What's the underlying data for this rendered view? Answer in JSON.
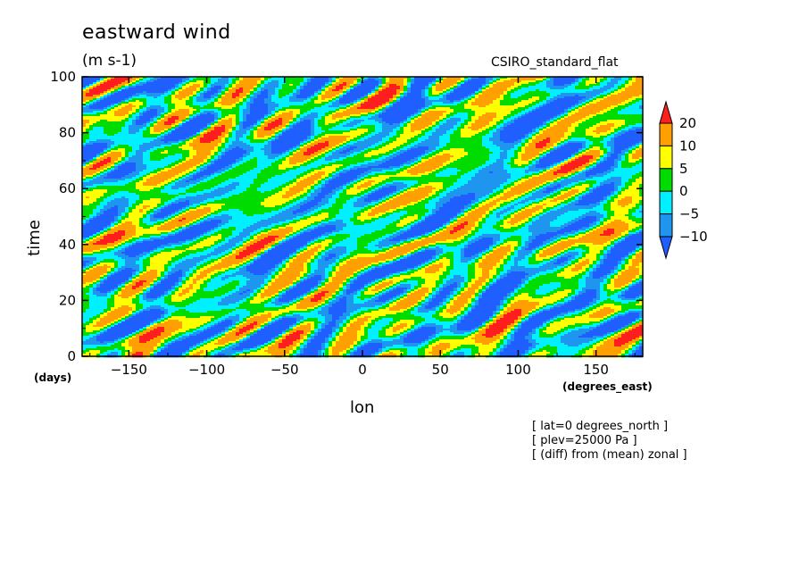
{
  "chart_data": {
    "type": "heatmap",
    "title": "eastward wind",
    "units": "(m s-1)",
    "dataset": "CSIRO_standard_flat",
    "xlabel": "lon",
    "ylabel": "time",
    "x_units": "(degrees_east)",
    "y_units": "(days)",
    "xlim": [
      -180,
      180
    ],
    "ylim": [
      0,
      100
    ],
    "x_ticks": [
      -150,
      -100,
      -50,
      0,
      50,
      100,
      150
    ],
    "x_tick_labels": [
      "−150",
      "−100",
      "−50",
      "0",
      "50",
      "100",
      "150"
    ],
    "y_ticks": [
      0,
      20,
      40,
      60,
      80,
      100
    ],
    "y_tick_labels": [
      "0",
      "20",
      "40",
      "60",
      "80",
      "100"
    ],
    "colorbar": {
      "levels": [
        -10,
        -5,
        0,
        5,
        10,
        20
      ],
      "level_labels": [
        "−10",
        "−5",
        "0",
        "5",
        "10",
        "20"
      ],
      "colors": [
        "#1f5fff",
        "#1e96f0",
        "#00f0ff",
        "#00dc00",
        "#ffff00",
        "#ffa000",
        "#ff1e1e"
      ]
    },
    "notes": [
      "[ lat=0 degrees_north ]",
      "[ plev=25000 Pa ]",
      "[ (diff) from (mean) zonal ]"
    ]
  }
}
